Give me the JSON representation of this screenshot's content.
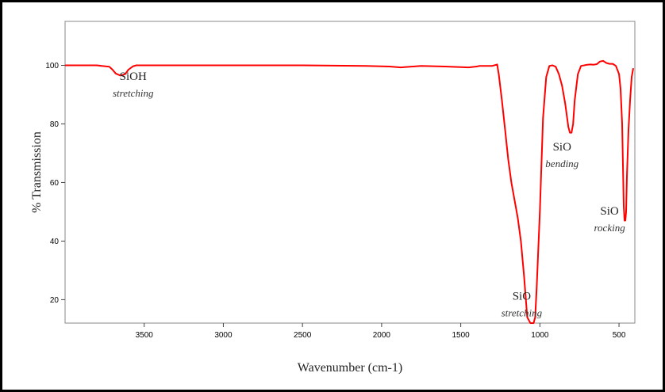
{
  "chart_data": {
    "type": "line",
    "title": "",
    "xlabel": "Wavenumber (cm-1)",
    "ylabel": "% Transmission",
    "xlim": [
      4000,
      400
    ],
    "ylim": [
      12,
      115
    ],
    "x_reversed": true,
    "grid": false,
    "color": "#ff0000",
    "x_ticks": [
      3500,
      3000,
      2500,
      2000,
      1500,
      1000,
      500
    ],
    "y_ticks": [
      20,
      40,
      60,
      80,
      100
    ],
    "series": [
      {
        "x": [
          4000,
          3800,
          3720,
          3700,
          3680,
          3650,
          3620,
          3600,
          3570,
          3550,
          3400,
          3000,
          2500,
          2100,
          1950,
          1880,
          1820,
          1750,
          1600,
          1450,
          1400,
          1380,
          1300,
          1270,
          1260,
          1240,
          1220,
          1200,
          1180,
          1160,
          1140,
          1120,
          1100,
          1080,
          1060,
          1050,
          1040,
          1030,
          1020,
          1000,
          980,
          960,
          940,
          920,
          900,
          880,
          860,
          840,
          820,
          810,
          800,
          790,
          780,
          760,
          740,
          720,
          700,
          680,
          660,
          640,
          620,
          600,
          580,
          560,
          540,
          520,
          500,
          490,
          480,
          475,
          470,
          465,
          460,
          455,
          450,
          440,
          430,
          420,
          410
        ],
        "y": [
          100,
          100,
          99.5,
          98.5,
          97.2,
          96.5,
          97,
          98.5,
          99.7,
          100,
          100,
          100,
          100,
          99.8,
          99.6,
          99.3,
          99.5,
          99.8,
          99.6,
          99.3,
          99.6,
          99.8,
          99.8,
          100.3,
          97,
          88,
          78,
          68,
          60,
          54,
          48,
          40,
          28,
          14,
          12,
          12,
          12,
          14,
          24,
          50,
          82,
          96,
          99.8,
          100,
          99.5,
          97,
          93,
          87,
          79,
          77,
          77,
          80,
          88,
          97,
          99.8,
          100,
          100.2,
          100.3,
          100.2,
          100.4,
          101.3,
          101.5,
          100.8,
          100.5,
          100.5,
          99.8,
          97,
          92,
          80,
          66,
          52,
          47,
          47,
          50,
          62,
          78,
          88,
          96,
          99
        ]
      }
    ],
    "annotations": [
      {
        "label": "SiOH",
        "sublabel": "stretching",
        "x": 3570,
        "y": 95
      },
      {
        "label": "SiO",
        "sublabel": "stretching",
        "x": 1115,
        "y": 20
      },
      {
        "label": "SiO",
        "sublabel": "bending",
        "x": 860,
        "y": 71
      },
      {
        "label": "SiO",
        "sublabel": "rocking",
        "x": 560,
        "y": 49
      }
    ]
  }
}
